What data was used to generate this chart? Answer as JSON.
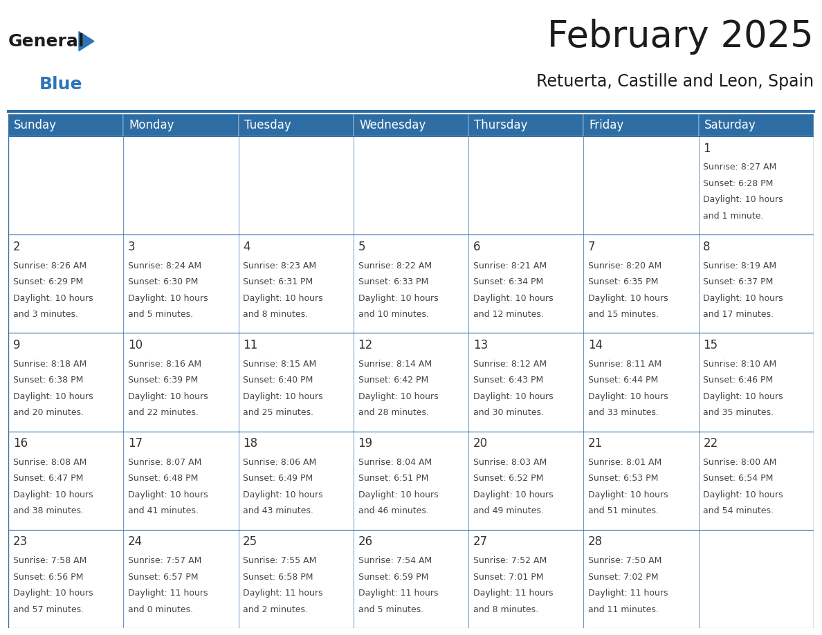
{
  "title": "February 2025",
  "subtitle": "Retuerta, Castille and Leon, Spain",
  "header_color": "#2E6DA4",
  "header_text_color": "#FFFFFF",
  "cell_bg_color": "#FFFFFF",
  "cell_alt_bg_color": "#F5F5F5",
  "border_color": "#2E6DA4",
  "day_number_color": "#333333",
  "cell_text_color": "#444444",
  "days_of_week": [
    "Sunday",
    "Monday",
    "Tuesday",
    "Wednesday",
    "Thursday",
    "Friday",
    "Saturday"
  ],
  "weeks": [
    [
      {
        "day": "",
        "info": ""
      },
      {
        "day": "",
        "info": ""
      },
      {
        "day": "",
        "info": ""
      },
      {
        "day": "",
        "info": ""
      },
      {
        "day": "",
        "info": ""
      },
      {
        "day": "",
        "info": ""
      },
      {
        "day": "1",
        "info": "Sunrise: 8:27 AM\nSunset: 6:28 PM\nDaylight: 10 hours\nand 1 minute."
      }
    ],
    [
      {
        "day": "2",
        "info": "Sunrise: 8:26 AM\nSunset: 6:29 PM\nDaylight: 10 hours\nand 3 minutes."
      },
      {
        "day": "3",
        "info": "Sunrise: 8:24 AM\nSunset: 6:30 PM\nDaylight: 10 hours\nand 5 minutes."
      },
      {
        "day": "4",
        "info": "Sunrise: 8:23 AM\nSunset: 6:31 PM\nDaylight: 10 hours\nand 8 minutes."
      },
      {
        "day": "5",
        "info": "Sunrise: 8:22 AM\nSunset: 6:33 PM\nDaylight: 10 hours\nand 10 minutes."
      },
      {
        "day": "6",
        "info": "Sunrise: 8:21 AM\nSunset: 6:34 PM\nDaylight: 10 hours\nand 12 minutes."
      },
      {
        "day": "7",
        "info": "Sunrise: 8:20 AM\nSunset: 6:35 PM\nDaylight: 10 hours\nand 15 minutes."
      },
      {
        "day": "8",
        "info": "Sunrise: 8:19 AM\nSunset: 6:37 PM\nDaylight: 10 hours\nand 17 minutes."
      }
    ],
    [
      {
        "day": "9",
        "info": "Sunrise: 8:18 AM\nSunset: 6:38 PM\nDaylight: 10 hours\nand 20 minutes."
      },
      {
        "day": "10",
        "info": "Sunrise: 8:16 AM\nSunset: 6:39 PM\nDaylight: 10 hours\nand 22 minutes."
      },
      {
        "day": "11",
        "info": "Sunrise: 8:15 AM\nSunset: 6:40 PM\nDaylight: 10 hours\nand 25 minutes."
      },
      {
        "day": "12",
        "info": "Sunrise: 8:14 AM\nSunset: 6:42 PM\nDaylight: 10 hours\nand 28 minutes."
      },
      {
        "day": "13",
        "info": "Sunrise: 8:12 AM\nSunset: 6:43 PM\nDaylight: 10 hours\nand 30 minutes."
      },
      {
        "day": "14",
        "info": "Sunrise: 8:11 AM\nSunset: 6:44 PM\nDaylight: 10 hours\nand 33 minutes."
      },
      {
        "day": "15",
        "info": "Sunrise: 8:10 AM\nSunset: 6:46 PM\nDaylight: 10 hours\nand 35 minutes."
      }
    ],
    [
      {
        "day": "16",
        "info": "Sunrise: 8:08 AM\nSunset: 6:47 PM\nDaylight: 10 hours\nand 38 minutes."
      },
      {
        "day": "17",
        "info": "Sunrise: 8:07 AM\nSunset: 6:48 PM\nDaylight: 10 hours\nand 41 minutes."
      },
      {
        "day": "18",
        "info": "Sunrise: 8:06 AM\nSunset: 6:49 PM\nDaylight: 10 hours\nand 43 minutes."
      },
      {
        "day": "19",
        "info": "Sunrise: 8:04 AM\nSunset: 6:51 PM\nDaylight: 10 hours\nand 46 minutes."
      },
      {
        "day": "20",
        "info": "Sunrise: 8:03 AM\nSunset: 6:52 PM\nDaylight: 10 hours\nand 49 minutes."
      },
      {
        "day": "21",
        "info": "Sunrise: 8:01 AM\nSunset: 6:53 PM\nDaylight: 10 hours\nand 51 minutes."
      },
      {
        "day": "22",
        "info": "Sunrise: 8:00 AM\nSunset: 6:54 PM\nDaylight: 10 hours\nand 54 minutes."
      }
    ],
    [
      {
        "day": "23",
        "info": "Sunrise: 7:58 AM\nSunset: 6:56 PM\nDaylight: 10 hours\nand 57 minutes."
      },
      {
        "day": "24",
        "info": "Sunrise: 7:57 AM\nSunset: 6:57 PM\nDaylight: 11 hours\nand 0 minutes."
      },
      {
        "day": "25",
        "info": "Sunrise: 7:55 AM\nSunset: 6:58 PM\nDaylight: 11 hours\nand 2 minutes."
      },
      {
        "day": "26",
        "info": "Sunrise: 7:54 AM\nSunset: 6:59 PM\nDaylight: 11 hours\nand 5 minutes."
      },
      {
        "day": "27",
        "info": "Sunrise: 7:52 AM\nSunset: 7:01 PM\nDaylight: 11 hours\nand 8 minutes."
      },
      {
        "day": "28",
        "info": "Sunrise: 7:50 AM\nSunset: 7:02 PM\nDaylight: 11 hours\nand 11 minutes."
      },
      {
        "day": "",
        "info": ""
      }
    ]
  ],
  "title_fontsize": 38,
  "subtitle_fontsize": 17,
  "header_fontsize": 12,
  "day_num_fontsize": 12,
  "cell_text_fontsize": 9,
  "logo_general_fontsize": 18,
  "logo_blue_fontsize": 18
}
